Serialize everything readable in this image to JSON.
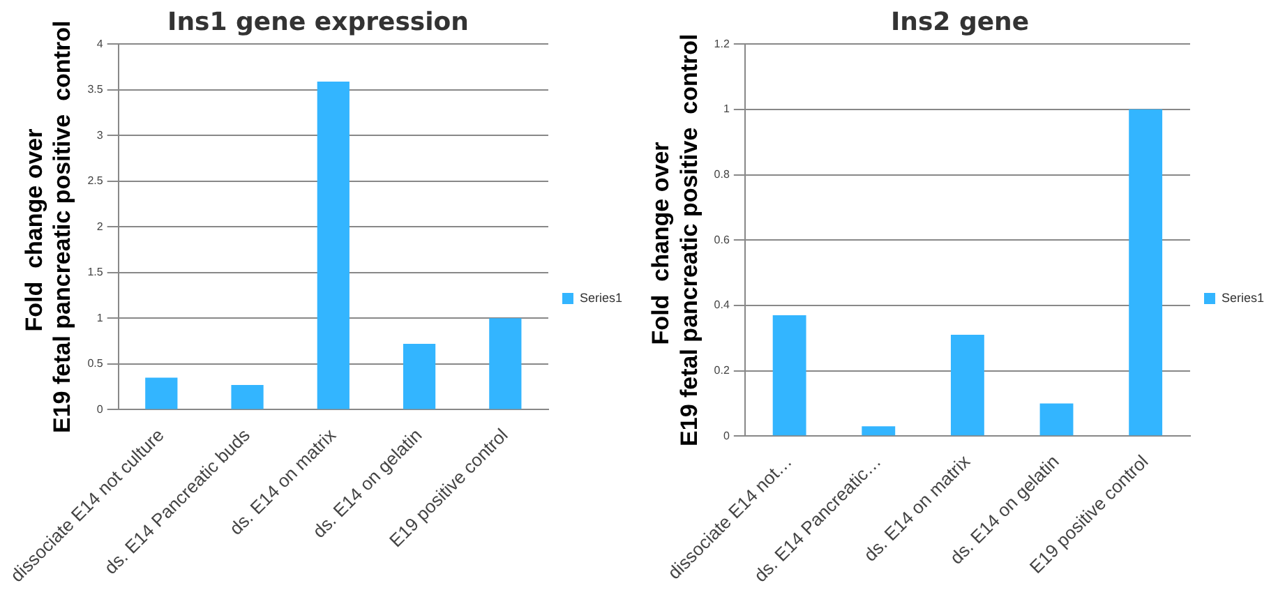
{
  "chart_data": [
    {
      "type": "bar",
      "title": "Ins1 gene expression",
      "ylabel": "Fold  change over  E19 fetal pancreatic positive  control",
      "categories": [
        "dissociate E14 not culture",
        "ds. E14 Pancreatic buds",
        "ds. E14 on matrix",
        "ds. E14 on gelatin",
        "E19 positive control"
      ],
      "series": [
        {
          "name": "Series1",
          "color": "#33b5ff",
          "values": [
            0.35,
            0.27,
            3.59,
            0.72,
            1.0
          ]
        }
      ],
      "ylim": [
        0,
        4
      ],
      "yticks": [
        0,
        0.5,
        1,
        1.5,
        2,
        2.5,
        3,
        3.5,
        4
      ],
      "grid": "y",
      "legend": "right"
    },
    {
      "type": "bar",
      "title": "Ins2 gene",
      "ylabel": "Fold  change over  E19 fetal pancreatic positive  control",
      "categories": [
        "dissociate E14 not…",
        "ds. E14 Pancreatic…",
        "ds. E14 on matrix",
        "ds. E14 on gelatin",
        "E19 positive control"
      ],
      "series": [
        {
          "name": "Series1",
          "color": "#33b5ff",
          "values": [
            0.37,
            0.03,
            0.31,
            0.1,
            1.0
          ]
        }
      ],
      "ylim": [
        0,
        1.2
      ],
      "yticks": [
        0,
        0.2,
        0.4,
        0.6,
        0.8,
        1,
        1.2
      ],
      "grid": "y",
      "legend": "right"
    }
  ]
}
